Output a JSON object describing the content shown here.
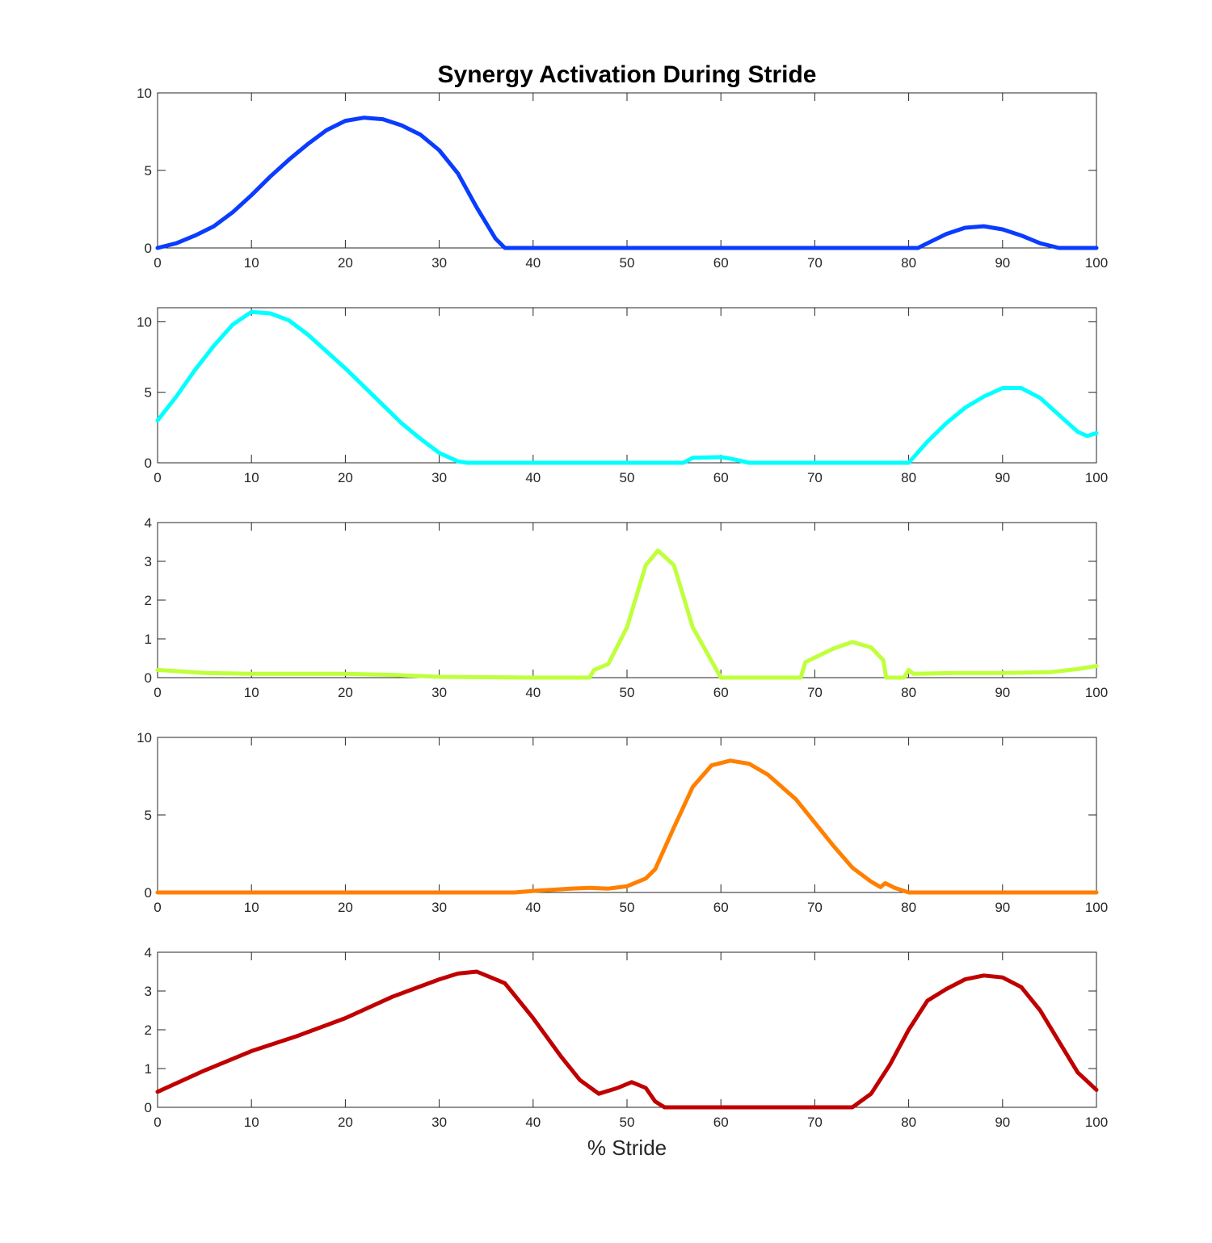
{
  "chart_data": [
    {
      "type": "line",
      "title": "Synergy Activation During Stride",
      "xlabel": "",
      "ylabel": "",
      "xlim": [
        0,
        100
      ],
      "ylim": [
        0,
        10
      ],
      "xticks": [
        0,
        10,
        20,
        30,
        40,
        50,
        60,
        70,
        80,
        90,
        100
      ],
      "yticks": [
        0,
        5,
        10
      ],
      "grid": false,
      "series": [
        {
          "color": "#0a3cff",
          "x": [
            0,
            2,
            4,
            6,
            8,
            10,
            12,
            14,
            16,
            18,
            20,
            22,
            24,
            26,
            28,
            30,
            32,
            34,
            36,
            37,
            40,
            50,
            60,
            70,
            81,
            82,
            84,
            86,
            88,
            90,
            92,
            94,
            96,
            100
          ],
          "y": [
            0,
            0.3,
            0.8,
            1.4,
            2.3,
            3.4,
            4.6,
            5.7,
            6.7,
            7.6,
            8.2,
            8.4,
            8.3,
            7.9,
            7.3,
            6.3,
            4.8,
            2.6,
            0.6,
            0,
            0,
            0,
            0,
            0,
            0,
            0.3,
            0.9,
            1.3,
            1.4,
            1.2,
            0.8,
            0.3,
            0,
            0
          ]
        }
      ]
    },
    {
      "type": "line",
      "title": "",
      "xlabel": "",
      "ylabel": "",
      "xlim": [
        0,
        100
      ],
      "ylim": [
        0,
        11
      ],
      "xticks": [
        0,
        10,
        20,
        30,
        40,
        50,
        60,
        70,
        80,
        90,
        100
      ],
      "yticks": [
        0,
        5,
        10
      ],
      "grid": false,
      "series": [
        {
          "color": "#00ffff",
          "x": [
            0,
            2,
            4,
            6,
            8,
            10,
            12,
            14,
            16,
            18,
            20,
            22,
            24,
            26,
            28,
            30,
            32,
            33,
            40,
            50,
            56,
            57,
            60,
            61,
            63,
            70,
            80,
            82,
            84,
            86,
            88,
            90,
            92,
            94,
            96,
            98,
            99,
            100
          ],
          "y": [
            3,
            4.7,
            6.6,
            8.3,
            9.8,
            10.7,
            10.6,
            10.1,
            9.1,
            7.9,
            6.7,
            5.4,
            4.1,
            2.8,
            1.7,
            0.7,
            0.1,
            0,
            0,
            0,
            0,
            0.35,
            0.4,
            0.3,
            0,
            0,
            0,
            1.5,
            2.8,
            3.9,
            4.7,
            5.3,
            5.3,
            4.6,
            3.4,
            2.2,
            1.9,
            2.1
          ]
        }
      ]
    },
    {
      "type": "line",
      "title": "",
      "xlabel": "",
      "ylabel": "",
      "xlim": [
        0,
        100
      ],
      "ylim": [
        0,
        4
      ],
      "xticks": [
        0,
        10,
        20,
        30,
        40,
        50,
        60,
        70,
        80,
        90,
        100
      ],
      "yticks": [
        0,
        1,
        2,
        3,
        4
      ],
      "grid": false,
      "series": [
        {
          "color": "#c0ff3c",
          "x": [
            0,
            5,
            10,
            15,
            20,
            25,
            30,
            40,
            46,
            46.5,
            48,
            50,
            52,
            53.3,
            55,
            57,
            60,
            65,
            68.5,
            69,
            72,
            74,
            76,
            77.3,
            77.6,
            79.5,
            80,
            80.5,
            85,
            90,
            95,
            98,
            100
          ],
          "y": [
            0.2,
            0.12,
            0.1,
            0.1,
            0.1,
            0.07,
            0.02,
            0,
            0,
            0.2,
            0.35,
            1.3,
            2.9,
            3.28,
            2.9,
            1.3,
            0,
            0,
            0,
            0.4,
            0.75,
            0.92,
            0.78,
            0.45,
            0,
            0,
            0.2,
            0.1,
            0.12,
            0.12,
            0.14,
            0.22,
            0.3
          ]
        }
      ]
    },
    {
      "type": "line",
      "title": "",
      "xlabel": "",
      "ylabel": "",
      "xlim": [
        0,
        100
      ],
      "ylim": [
        0,
        10
      ],
      "xticks": [
        0,
        10,
        20,
        30,
        40,
        50,
        60,
        70,
        80,
        90,
        100
      ],
      "yticks": [
        0,
        5,
        10
      ],
      "grid": false,
      "series": [
        {
          "color": "#ff8000",
          "x": [
            0,
            10,
            20,
            30,
            38,
            40,
            44,
            46,
            48,
            50,
            52,
            53,
            55,
            57,
            59,
            61,
            63,
            65,
            68,
            70,
            72,
            74,
            76,
            77,
            77.5,
            78.5,
            80,
            85,
            90,
            100
          ],
          "y": [
            0,
            0,
            0,
            0,
            0,
            0.1,
            0.25,
            0.3,
            0.25,
            0.4,
            0.9,
            1.5,
            4.2,
            6.8,
            8.2,
            8.5,
            8.3,
            7.6,
            6,
            4.5,
            3,
            1.6,
            0.7,
            0.35,
            0.6,
            0.3,
            0,
            0,
            0,
            0
          ]
        }
      ]
    },
    {
      "type": "line",
      "title": "",
      "xlabel": "% Stride",
      "ylabel": "",
      "xlim": [
        0,
        100
      ],
      "ylim": [
        0,
        4
      ],
      "xticks": [
        0,
        10,
        20,
        30,
        40,
        50,
        60,
        70,
        80,
        90,
        100
      ],
      "yticks": [
        0,
        1,
        2,
        3,
        4
      ],
      "grid": false,
      "series": [
        {
          "color": "#c00000",
          "x": [
            0,
            5,
            10,
            15,
            20,
            25,
            30,
            32,
            34,
            36,
            37,
            40,
            43,
            45,
            47,
            49,
            50.5,
            52,
            53,
            54,
            60,
            70,
            74,
            76,
            78,
            80,
            82,
            84,
            86,
            88,
            90,
            92,
            94,
            96,
            98,
            100
          ],
          "y": [
            0.4,
            0.95,
            1.45,
            1.85,
            2.3,
            2.85,
            3.3,
            3.45,
            3.5,
            3.3,
            3.2,
            2.3,
            1.3,
            0.7,
            0.35,
            0.5,
            0.65,
            0.5,
            0.15,
            0,
            0,
            0,
            0,
            0.35,
            1.1,
            2,
            2.75,
            3.05,
            3.3,
            3.4,
            3.35,
            3.1,
            2.5,
            1.7,
            0.9,
            0.45
          ]
        }
      ]
    }
  ]
}
